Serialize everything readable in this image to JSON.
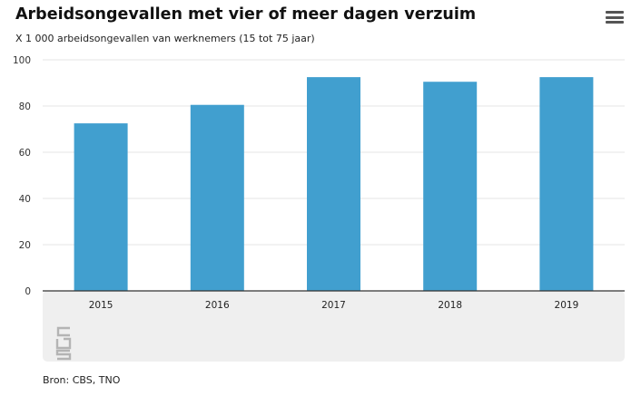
{
  "header": {
    "title": "Arbeidsongevallen met vier of meer dagen verzuim",
    "subtitle": "X 1 000 arbeidsongevallen van werknemers (15 tot 75 jaar)",
    "menu_icon": "hamburger-menu-icon"
  },
  "footer": {
    "source": "Bron: CBS, TNO",
    "logo_icon": "cbs-logo-icon"
  },
  "colors": {
    "bar": "#419fcf",
    "grid": "#e6e6e6",
    "axis": "#333333",
    "footer_panel": "#efefef"
  },
  "chart_data": {
    "type": "bar",
    "title": "Arbeidsongevallen met vier of meer dagen verzuim",
    "subtitle": "X 1 000 arbeidsongevallen van werknemers (15 tot 75 jaar)",
    "categories": [
      "2015",
      "2016",
      "2017",
      "2018",
      "2019"
    ],
    "values": [
      72.5,
      80.5,
      92.5,
      90.5,
      92.5
    ],
    "ylim": [
      0,
      100
    ],
    "yticks": [
      0,
      20,
      40,
      60,
      80,
      100
    ],
    "grid": true,
    "legend": "none"
  }
}
